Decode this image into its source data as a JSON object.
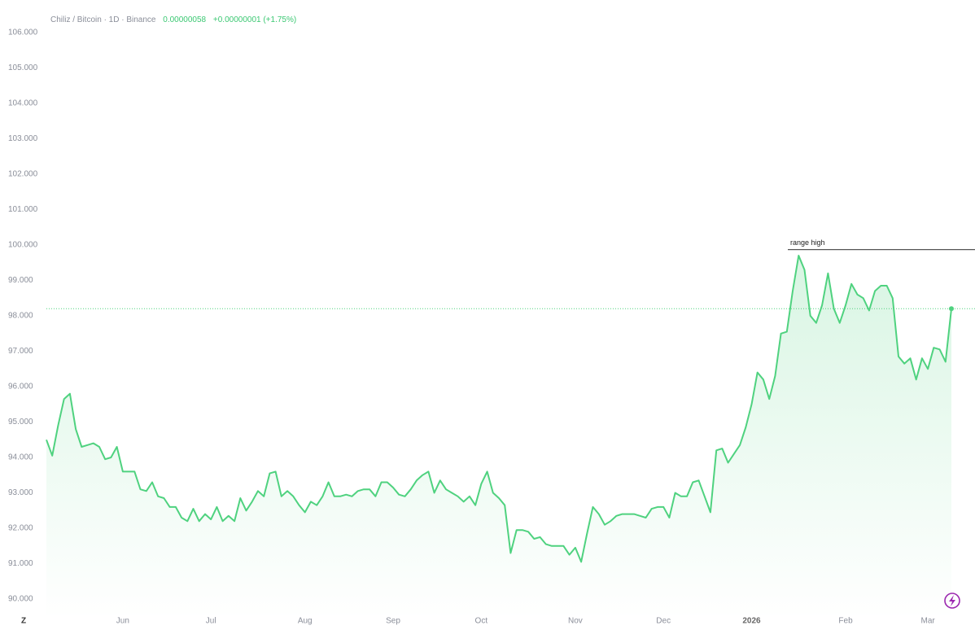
{
  "chart_data": {
    "type": "area",
    "title": "Chiliz / Bitcoin · 1D · Binance",
    "price": "0.00000058",
    "change": "+0.00000001 (+1.75%)",
    "logo_text": "Z",
    "color": "#4fd27f",
    "annotation": {
      "text": "range high",
      "value": 99.87
    },
    "categories": [
      null,
      null,
      null,
      null,
      null,
      null,
      null,
      null,
      null,
      null,
      null,
      null,
      null,
      "Jun",
      null,
      null,
      null,
      null,
      null,
      null,
      null,
      null,
      null,
      null,
      null,
      null,
      null,
      null,
      "Jul",
      null,
      null,
      null,
      null,
      null,
      null,
      null,
      null,
      null,
      null,
      null,
      null,
      null,
      null,
      null,
      "Aug",
      null,
      null,
      null,
      null,
      null,
      null,
      null,
      null,
      null,
      null,
      null,
      null,
      null,
      null,
      "Sep",
      null,
      null,
      null,
      null,
      null,
      null,
      null,
      null,
      null,
      null,
      null,
      null,
      null,
      null,
      "Oct",
      null,
      null,
      null,
      null,
      null,
      null,
      null,
      null,
      null,
      null,
      null,
      null,
      null,
      null,
      null,
      "Nov",
      null,
      null,
      null,
      null,
      null,
      null,
      null,
      null,
      null,
      null,
      null,
      null,
      null,
      null,
      "Dec",
      null,
      null,
      null,
      null,
      null,
      null,
      null,
      null,
      null,
      null,
      null,
      null,
      null,
      null,
      "2026",
      null,
      null,
      null,
      null,
      null,
      null,
      null,
      null,
      null,
      null,
      null,
      null,
      null,
      null,
      null,
      "Feb",
      null,
      null,
      null,
      null,
      null,
      null,
      null,
      null,
      null,
      null,
      null,
      null,
      null,
      "Mar",
      null,
      null,
      null,
      null
    ],
    "values": [
      94.5,
      94.05,
      94.9,
      95.65,
      95.8,
      94.8,
      94.3,
      94.35,
      94.4,
      94.3,
      93.95,
      94.0,
      94.3,
      93.6,
      93.6,
      93.6,
      93.1,
      93.05,
      93.3,
      92.9,
      92.85,
      92.6,
      92.6,
      92.3,
      92.2,
      92.55,
      92.2,
      92.4,
      92.25,
      92.6,
      92.2,
      92.35,
      92.2,
      92.85,
      92.5,
      92.75,
      93.05,
      92.9,
      93.55,
      93.6,
      92.9,
      93.05,
      92.9,
      92.65,
      92.45,
      92.75,
      92.65,
      92.9,
      93.3,
      92.9,
      92.9,
      92.95,
      92.9,
      93.05,
      93.1,
      93.1,
      92.9,
      93.3,
      93.3,
      93.15,
      92.95,
      92.9,
      93.1,
      93.35,
      93.5,
      93.6,
      93.0,
      93.35,
      93.1,
      93.0,
      92.9,
      92.75,
      92.9,
      92.65,
      93.25,
      93.6,
      93.0,
      92.85,
      92.65,
      91.3,
      91.95,
      91.95,
      91.9,
      91.7,
      91.75,
      91.55,
      91.5,
      91.5,
      91.5,
      91.25,
      91.45,
      91.05,
      91.85,
      92.6,
      92.4,
      92.1,
      92.2,
      92.35,
      92.4,
      92.4,
      92.4,
      92.35,
      92.3,
      92.55,
      92.6,
      92.6,
      92.3,
      93.0,
      92.9,
      92.9,
      93.3,
      93.35,
      92.9,
      92.45,
      94.2,
      94.25,
      93.85,
      94.1,
      94.35,
      94.85,
      95.5,
      96.4,
      96.2,
      95.65,
      96.3,
      97.5,
      97.55,
      98.7,
      99.7,
      99.3,
      98.0,
      97.8,
      98.3,
      99.2,
      98.2,
      97.8,
      98.3,
      98.9,
      98.6,
      98.5,
      98.15,
      98.7,
      98.85,
      98.85,
      98.5,
      96.85,
      96.65,
      96.8,
      96.2,
      96.8,
      96.5,
      97.1,
      97.05,
      96.7,
      98.2
    ],
    "ylim": [
      90,
      106
    ],
    "yticks": [
      {
        "value": 90,
        "label": "90.000"
      },
      {
        "value": 91,
        "label": "91.000"
      },
      {
        "value": 92,
        "label": "92.000"
      },
      {
        "value": 93,
        "label": "93.000"
      },
      {
        "value": 94,
        "label": "94.000"
      },
      {
        "value": 95,
        "label": "95.000"
      },
      {
        "value": 96,
        "label": "96.000"
      },
      {
        "value": 97,
        "label": "97.000"
      },
      {
        "value": 98,
        "label": "98.000"
      },
      {
        "value": 99,
        "label": "99.000"
      },
      {
        "value": 100,
        "label": "100.000"
      },
      {
        "value": 101,
        "label": "101.000"
      },
      {
        "value": 102,
        "label": "102.000"
      },
      {
        "value": 103,
        "label": "103.000"
      },
      {
        "value": 104,
        "label": "104.000"
      },
      {
        "value": 105,
        "label": "105.000"
      },
      {
        "value": 106,
        "label": "106.000"
      }
    ],
    "grid": false
  }
}
